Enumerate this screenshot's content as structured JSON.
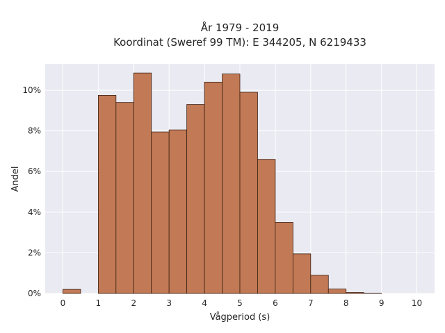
{
  "chart_data": {
    "type": "bar",
    "title_line1": "År 1979 - 2019",
    "title_line2": "Koordinat (Sweref 99 TM): E 344205, N 6219433",
    "xlabel": "Vågperiod (s)",
    "ylabel": "Andel",
    "xlim": [
      -0.5,
      10.5
    ],
    "ylim": [
      0,
      11.3
    ],
    "x_ticks": [
      0,
      1,
      2,
      3,
      4,
      5,
      6,
      7,
      8,
      9,
      10
    ],
    "y_ticks": [
      0,
      2,
      4,
      6,
      8,
      10
    ],
    "y_tick_labels": [
      "0%",
      "2%",
      "4%",
      "6%",
      "8%",
      "10%"
    ],
    "bin_width": 0.5,
    "bins": [
      {
        "x0": 0.0,
        "value": 0.2
      },
      {
        "x0": 0.5,
        "value": 0.0
      },
      {
        "x0": 1.0,
        "value": 9.75
      },
      {
        "x0": 1.5,
        "value": 9.4
      },
      {
        "x0": 2.0,
        "value": 10.85
      },
      {
        "x0": 2.5,
        "value": 7.95
      },
      {
        "x0": 3.0,
        "value": 8.05
      },
      {
        "x0": 3.5,
        "value": 9.3
      },
      {
        "x0": 4.0,
        "value": 10.4
      },
      {
        "x0": 4.5,
        "value": 10.8
      },
      {
        "x0": 5.0,
        "value": 9.9
      },
      {
        "x0": 5.5,
        "value": 6.6
      },
      {
        "x0": 6.0,
        "value": 3.5
      },
      {
        "x0": 6.5,
        "value": 1.95
      },
      {
        "x0": 7.0,
        "value": 0.9
      },
      {
        "x0": 7.5,
        "value": 0.22
      },
      {
        "x0": 8.0,
        "value": 0.05
      },
      {
        "x0": 8.5,
        "value": 0.01
      }
    ],
    "grid": true,
    "bar_color": "#c17a55",
    "bar_edge_color": "#3b1f12",
    "plot_background": "#eaeaf2"
  }
}
